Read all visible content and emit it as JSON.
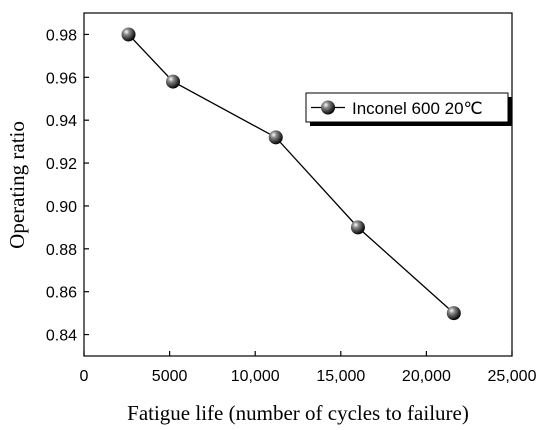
{
  "chart_data": {
    "type": "line",
    "title": "",
    "xlabel": "Fatigue life (number of cycles to failure)",
    "ylabel": "Operating ratio",
    "xlim": [
      0,
      25000
    ],
    "ylim": [
      0.83,
      0.99
    ],
    "x_ticks": [
      0,
      5000,
      10000,
      15000,
      20000,
      25000
    ],
    "x_tick_labels": [
      "0",
      "5000",
      "10,000",
      "15,000",
      "20,000",
      "25,000"
    ],
    "y_ticks": [
      0.84,
      0.86,
      0.88,
      0.9,
      0.92,
      0.94,
      0.96,
      0.98
    ],
    "y_tick_labels": [
      "0.84",
      "0.86",
      "0.88",
      "0.90",
      "0.92",
      "0.94",
      "0.96",
      "0.98"
    ],
    "grid": false,
    "legend_position": "upper-right",
    "series": [
      {
        "name": "Inconel 600 20℃",
        "color": "#000000",
        "marker": "sphere",
        "x": [
          2600,
          5200,
          11200,
          16000,
          21600
        ],
        "y": [
          0.98,
          0.958,
          0.932,
          0.89,
          0.85
        ]
      }
    ]
  }
}
